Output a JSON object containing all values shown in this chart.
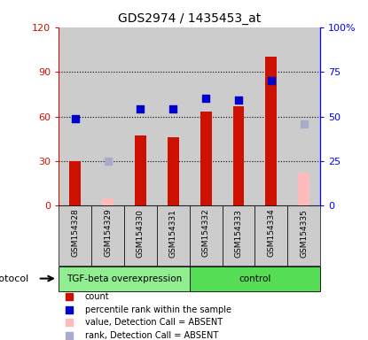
{
  "title": "GDS2974 / 1435453_at",
  "samples": [
    "GSM154328",
    "GSM154329",
    "GSM154330",
    "GSM154331",
    "GSM154332",
    "GSM154333",
    "GSM154334",
    "GSM154335"
  ],
  "red_bars": [
    30,
    null,
    47,
    46,
    63,
    67,
    100,
    null
  ],
  "pink_bars": [
    null,
    5,
    null,
    null,
    null,
    null,
    null,
    22
  ],
  "blue_squares": [
    49,
    null,
    54,
    54,
    60,
    59,
    70,
    null
  ],
  "lightblue_squares": [
    null,
    25,
    null,
    null,
    null,
    null,
    null,
    46
  ],
  "group_defs": [
    {
      "start": -0.5,
      "end": 3.5,
      "label": "TGF-beta overexpression",
      "color": "#90EE90"
    },
    {
      "start": 3.5,
      "end": 7.5,
      "label": "control",
      "color": "#55DD55"
    }
  ],
  "ylim_left": [
    0,
    120
  ],
  "ylim_right": [
    0,
    100
  ],
  "yticks_left": [
    0,
    30,
    60,
    90,
    120
  ],
  "ytick_labels_left": [
    "0",
    "30",
    "60",
    "90",
    "120"
  ],
  "yticks_right": [
    0,
    25,
    50,
    75,
    100
  ],
  "ytick_labels_right": [
    "0",
    "25",
    "50",
    "75",
    "100%"
  ],
  "bar_width": 0.35,
  "red_color": "#CC1100",
  "pink_color": "#FFBBBB",
  "blue_color": "#0000CC",
  "lightblue_color": "#AAAACC",
  "col_bg_color": "#CCCCCC",
  "plot_bg_color": "#FFFFFF",
  "legend_items": [
    {
      "color": "#CC1100",
      "label": "count"
    },
    {
      "color": "#0000CC",
      "label": "percentile rank within the sample"
    },
    {
      "color": "#FFBBBB",
      "label": "value, Detection Call = ABSENT"
    },
    {
      "color": "#AAAACC",
      "label": "rank, Detection Call = ABSENT"
    }
  ],
  "xlim": [
    -0.5,
    7.5
  ]
}
